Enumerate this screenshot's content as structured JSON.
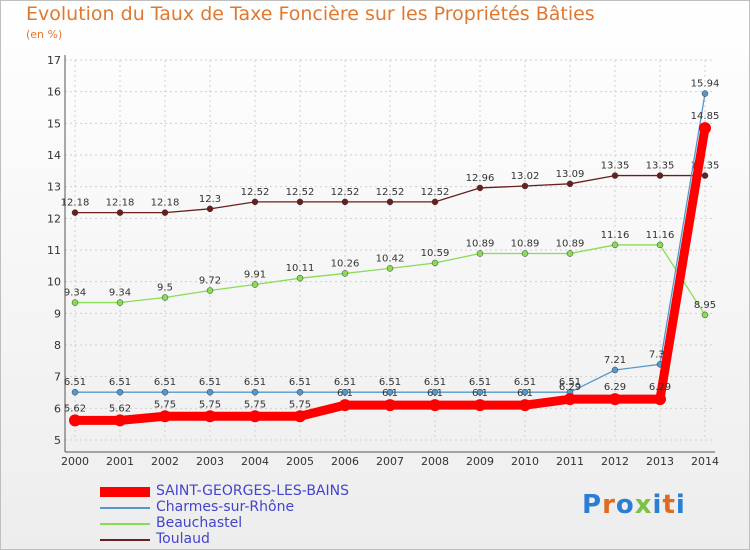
{
  "chart_data": {
    "type": "line",
    "title": "Evolution du Taux de Taxe Foncière sur les Propriétés Bâties",
    "unit_label": "(en %)",
    "x": [
      "2000",
      "2001",
      "2002",
      "2003",
      "2004",
      "2005",
      "2006",
      "2007",
      "2008",
      "2009",
      "2010",
      "2011",
      "2012",
      "2013",
      "2014"
    ],
    "ylim": [
      5,
      17
    ],
    "yticks": [
      5,
      6,
      7,
      8,
      9,
      10,
      11,
      12,
      13,
      14,
      15,
      16,
      17
    ],
    "grid": true,
    "legend_position": "bottom-left",
    "series": [
      {
        "name": "Toulaud",
        "color": "#6b1e1e",
        "values": [
          12.18,
          12.18,
          12.18,
          12.3,
          12.52,
          12.52,
          12.52,
          12.52,
          12.52,
          12.96,
          13.02,
          13.09,
          13.35,
          13.35,
          13.35
        ],
        "labels": [
          "12.18",
          "12.18",
          "12.18",
          "12.3",
          "12.52",
          "12.52",
          "12.52",
          "12.52",
          "12.52",
          "12.96",
          "13.02",
          "13.09",
          "13.35",
          "13.35",
          "13.35"
        ]
      },
      {
        "name": "Beauchastel",
        "color": "#88dd55",
        "values": [
          9.34,
          9.34,
          9.5,
          9.72,
          9.91,
          10.11,
          10.26,
          10.42,
          10.59,
          10.89,
          10.89,
          10.89,
          11.16,
          11.16,
          8.95
        ],
        "labels": [
          "9.34",
          "9.34",
          "9.5",
          "9.72",
          "9.91",
          "10.11",
          "10.26",
          "10.42",
          "10.59",
          "10.89",
          "10.89",
          "10.89",
          "11.16",
          "11.16",
          "8.95"
        ]
      },
      {
        "name": "Charmes-sur-Rhône",
        "color": "#5599cc",
        "values": [
          6.51,
          6.51,
          6.51,
          6.51,
          6.51,
          6.51,
          6.51,
          6.51,
          6.51,
          6.51,
          6.51,
          6.51,
          7.21,
          7.39,
          15.94
        ],
        "labels": [
          "6.51",
          "6.51",
          "6.51",
          "6.51",
          "6.51",
          "6.51",
          "6.51",
          "6.51",
          "6.51",
          "6.51",
          "6.51",
          "6.51",
          "7.21",
          "7.39",
          "15.94"
        ]
      },
      {
        "name": "SAINT-GEORGES-LES-BAINS",
        "color": "#ff0000",
        "values": [
          5.62,
          5.62,
          5.75,
          5.75,
          5.75,
          5.75,
          6.1,
          6.1,
          6.1,
          6.1,
          6.1,
          6.29,
          6.29,
          6.29,
          14.85
        ],
        "labels": [
          "5.62",
          "5.62",
          "5.75",
          "5.75",
          "5.75",
          "5.75",
          "6.1",
          "6.1",
          "6.1",
          "6.1",
          "6.1",
          "6.29",
          "6.29",
          "6.29",
          "14.85"
        ]
      }
    ]
  },
  "legend": {
    "items": [
      {
        "name": "SAINT-GEORGES-LES-BAINS",
        "color": "#ff0000"
      },
      {
        "name": "Charmes-sur-Rhône",
        "color": "#5599cc"
      },
      {
        "name": "Beauchastel",
        "color": "#88dd55"
      },
      {
        "name": "Toulaud",
        "color": "#6b1e1e"
      }
    ]
  },
  "logo": {
    "text": "Proxiti",
    "colors": [
      "#2a7fd4",
      "#e06a1e",
      "#2a7fd4",
      "#7cc242",
      "#2a7fd4",
      "#e06a1e",
      "#2a7fd4"
    ]
  }
}
